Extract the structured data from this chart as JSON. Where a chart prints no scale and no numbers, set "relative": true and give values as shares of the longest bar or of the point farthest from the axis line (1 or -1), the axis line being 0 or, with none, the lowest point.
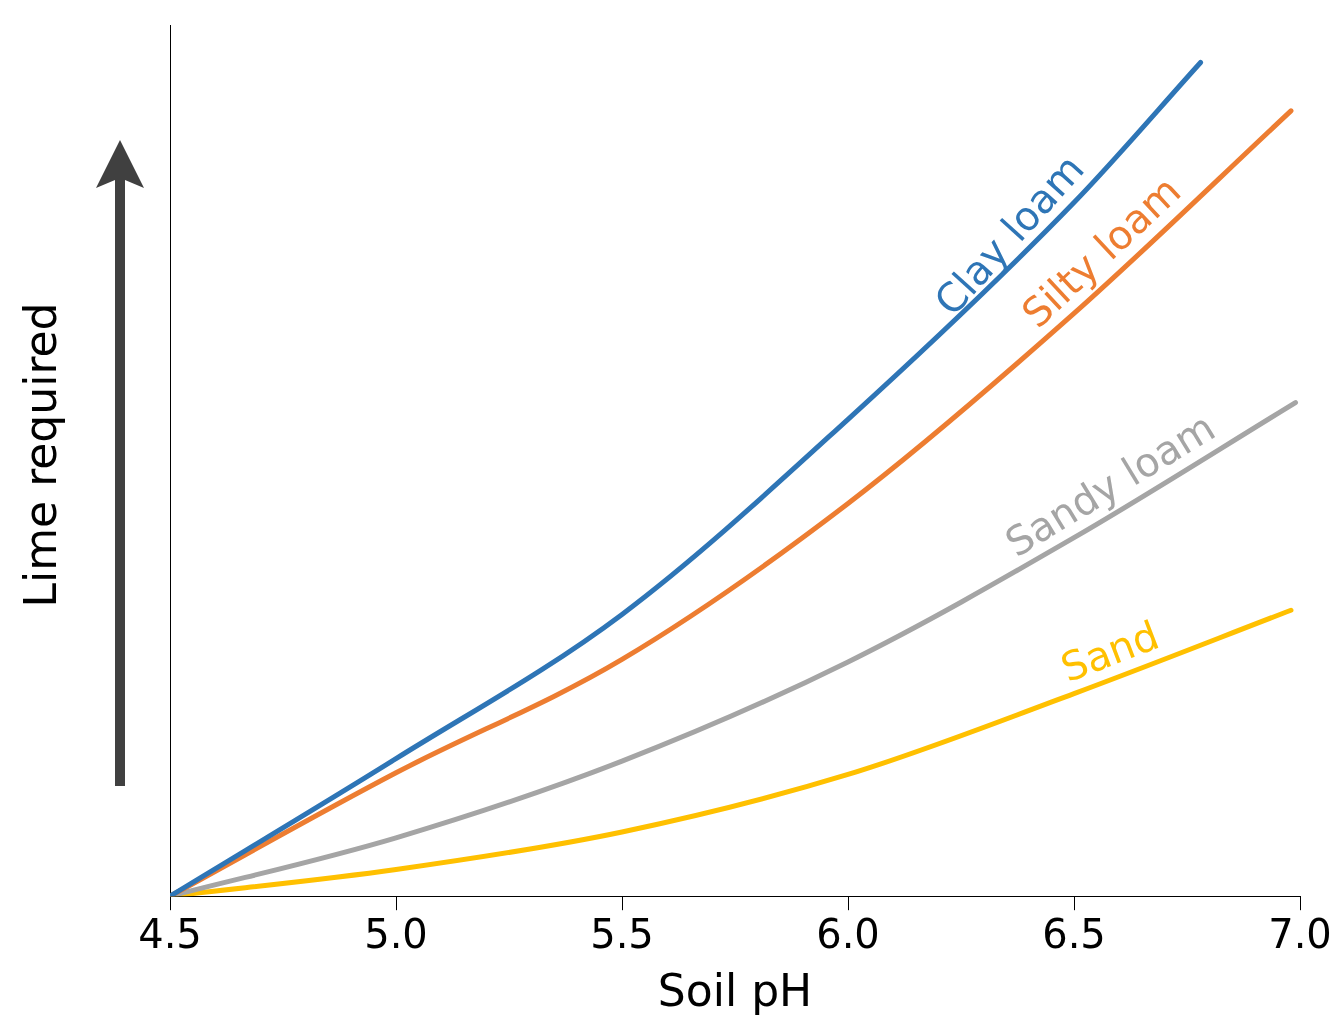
{
  "chart_data": {
    "type": "line",
    "relative": true,
    "xlabel": "Soil pH",
    "ylabel": "Lime required",
    "legend": false,
    "grid": false,
    "marker": "none",
    "line_style": "solid",
    "xlim": [
      4.5,
      7.0
    ],
    "xticks": [
      4.5,
      {
        "value": 5,
        "label": "5.0"
      },
      5.5,
      {
        "value": 6,
        "label": "6.0"
      },
      6.5,
      {
        "value": 7,
        "label": "7.0"
      }
    ],
    "series": [
      {
        "name": "Clay loam",
        "color": "#2e75b6",
        "x": [
          4.5,
          5.0,
          5.5,
          6.0,
          6.5,
          6.78
        ],
        "values": [
          0,
          0.165,
          0.338,
          0.572,
          0.832,
          1
        ]
      },
      {
        "name": "Silty loam",
        "color": "#ed7d31",
        "x": [
          4.5,
          5.0,
          5.5,
          6.0,
          6.5,
          6.98
        ],
        "values": [
          0,
          0.148,
          0.284,
          0.471,
          0.699,
          0.942
        ]
      },
      {
        "name": "Sandy loam",
        "color": "#a5a5a5",
        "x": [
          4.5,
          5.0,
          5.5,
          6.0,
          6.5,
          6.99
        ],
        "values": [
          0,
          0.07,
          0.162,
          0.281,
          0.43,
          0.592
        ]
      },
      {
        "name": "Sand",
        "color": "#ffc000",
        "x": [
          4.5,
          5.0,
          5.5,
          6.0,
          6.5,
          6.98
        ],
        "values": [
          0,
          0.032,
          0.077,
          0.146,
          0.243,
          0.343
        ]
      }
    ]
  }
}
